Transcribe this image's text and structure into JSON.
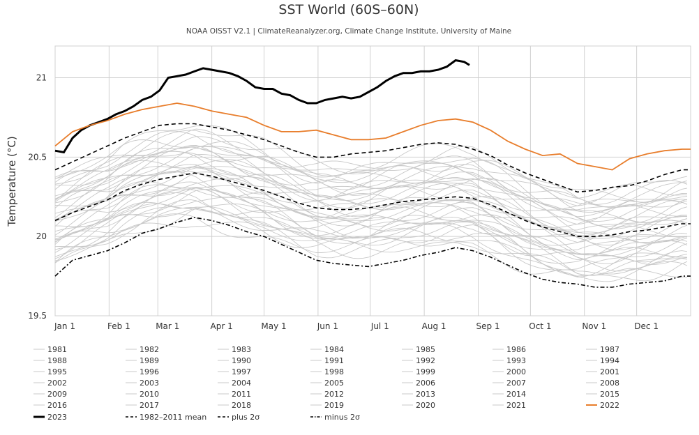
{
  "chart_data": {
    "type": "line",
    "title": "SST World (60S–60N)",
    "subtitle": "NOAA OISST V2.1 | ClimateReanalyzer.org, Climate Change Institute, University of Maine",
    "xlabel": "",
    "ylabel": "Temperature (°C)",
    "ylim": [
      19.5,
      21.2
    ],
    "yticks": [
      19.5,
      20,
      20.5,
      21
    ],
    "ytick_labels": [
      "19.5",
      "20",
      "20.5",
      "21"
    ],
    "xlim": [
      1,
      366
    ],
    "xticks": [
      {
        "label": "Jan 1",
        "day": 1
      },
      {
        "label": "Feb 1",
        "day": 32
      },
      {
        "label": "Mar 1",
        "day": 60
      },
      {
        "label": "Apr 1",
        "day": 91
      },
      {
        "label": "May 1",
        "day": 121
      },
      {
        "label": "Jun 1",
        "day": 152
      },
      {
        "label": "Jul 1",
        "day": 182
      },
      {
        "label": "Aug 1",
        "day": 213
      },
      {
        "label": "Sep 1",
        "day": 244
      },
      {
        "label": "Oct 1",
        "day": 274
      },
      {
        "label": "Nov 1",
        "day": 305
      },
      {
        "label": "Dec 1",
        "day": 335
      }
    ],
    "colors": {
      "year_2023": "#000000",
      "year_2022": "#e87d2b",
      "gray_years": "#c8c8c8",
      "reference": "#000000",
      "grid": "#d0d0d0"
    },
    "series": [
      {
        "name": "2023",
        "style": "bold",
        "x": [
          1,
          6,
          11,
          16,
          21,
          26,
          31,
          36,
          41,
          46,
          51,
          56,
          61,
          66,
          71,
          76,
          81,
          86,
          91,
          96,
          101,
          106,
          111,
          116,
          121,
          126,
          131,
          136,
          141,
          146,
          151,
          156,
          161,
          166,
          171,
          176,
          181,
          186,
          191,
          196,
          201,
          206,
          211,
          216,
          221,
          226,
          231,
          236,
          239
        ],
        "values": [
          20.54,
          20.53,
          20.62,
          20.67,
          20.7,
          20.72,
          20.74,
          20.77,
          20.79,
          20.82,
          20.86,
          20.88,
          20.92,
          21.0,
          21.01,
          21.02,
          21.04,
          21.06,
          21.05,
          21.04,
          21.03,
          21.01,
          20.98,
          20.94,
          20.93,
          20.93,
          20.9,
          20.89,
          20.86,
          20.84,
          20.84,
          20.86,
          20.87,
          20.88,
          20.87,
          20.88,
          20.91,
          20.94,
          20.98,
          21.01,
          21.03,
          21.03,
          21.04,
          21.04,
          21.05,
          21.07,
          21.11,
          21.1,
          21.08
        ]
      },
      {
        "name": "2022",
        "style": "orange",
        "x": [
          1,
          11,
          21,
          31,
          41,
          51,
          61,
          71,
          81,
          91,
          101,
          111,
          121,
          131,
          141,
          151,
          161,
          171,
          181,
          191,
          201,
          211,
          221,
          231,
          241,
          251,
          261,
          271,
          281,
          291,
          301,
          311,
          321,
          331,
          341,
          351,
          361,
          366
        ],
        "values": [
          20.57,
          20.66,
          20.7,
          20.73,
          20.77,
          20.8,
          20.82,
          20.84,
          20.82,
          20.79,
          20.77,
          20.75,
          20.7,
          20.66,
          20.66,
          20.67,
          20.64,
          20.61,
          20.61,
          20.62,
          20.66,
          20.7,
          20.73,
          20.74,
          20.72,
          20.67,
          20.6,
          20.55,
          20.51,
          20.52,
          20.46,
          20.44,
          20.42,
          20.49,
          20.52,
          20.54,
          20.55,
          20.55
        ]
      },
      {
        "name": "1982–2011 mean",
        "style": "dashed",
        "x": [
          1,
          11,
          21,
          31,
          41,
          51,
          61,
          71,
          81,
          91,
          101,
          111,
          121,
          131,
          141,
          151,
          161,
          171,
          181,
          191,
          201,
          211,
          221,
          231,
          241,
          251,
          261,
          271,
          281,
          291,
          301,
          311,
          321,
          331,
          341,
          351,
          361,
          366
        ],
        "values": [
          20.1,
          20.15,
          20.19,
          20.23,
          20.29,
          20.33,
          20.36,
          20.38,
          20.4,
          20.38,
          20.35,
          20.32,
          20.29,
          20.25,
          20.21,
          20.18,
          20.17,
          20.17,
          20.18,
          20.2,
          20.22,
          20.23,
          20.24,
          20.25,
          20.24,
          20.2,
          20.15,
          20.1,
          20.06,
          20.03,
          20.0,
          20.0,
          20.01,
          20.03,
          20.04,
          20.06,
          20.08,
          20.08
        ]
      },
      {
        "name": "plus 2σ",
        "style": "dashed",
        "x": [
          1,
          11,
          21,
          31,
          41,
          51,
          61,
          71,
          81,
          91,
          101,
          111,
          121,
          131,
          141,
          151,
          161,
          171,
          181,
          191,
          201,
          211,
          221,
          231,
          241,
          251,
          261,
          271,
          281,
          291,
          301,
          311,
          321,
          331,
          341,
          351,
          361,
          366
        ],
        "values": [
          20.42,
          20.47,
          20.52,
          20.57,
          20.62,
          20.66,
          20.7,
          20.71,
          20.71,
          20.69,
          20.67,
          20.64,
          20.61,
          20.57,
          20.53,
          20.5,
          20.5,
          20.52,
          20.53,
          20.54,
          20.56,
          20.58,
          20.59,
          20.58,
          20.55,
          20.51,
          20.45,
          20.4,
          20.36,
          20.32,
          20.28,
          20.29,
          20.31,
          20.32,
          20.35,
          20.39,
          20.42,
          20.42
        ]
      },
      {
        "name": "minus 2σ",
        "style": "dashdot",
        "x": [
          1,
          11,
          21,
          31,
          41,
          51,
          61,
          71,
          81,
          91,
          101,
          111,
          121,
          131,
          141,
          151,
          161,
          171,
          181,
          191,
          201,
          211,
          221,
          231,
          241,
          251,
          261,
          271,
          281,
          291,
          301,
          311,
          321,
          331,
          341,
          351,
          361,
          366
        ],
        "values": [
          19.75,
          19.85,
          19.88,
          19.91,
          19.96,
          20.02,
          20.05,
          20.09,
          20.12,
          20.1,
          20.07,
          20.03,
          20.0,
          19.95,
          19.9,
          19.85,
          19.83,
          19.82,
          19.81,
          19.83,
          19.85,
          19.88,
          19.9,
          19.93,
          19.91,
          19.87,
          19.82,
          19.77,
          19.73,
          19.71,
          19.7,
          19.68,
          19.68,
          19.7,
          19.71,
          19.72,
          19.75,
          19.75
        ]
      }
    ],
    "gray_band": {
      "description": "individual years 1981–2021 drawn as thin gray lines"
    },
    "legend": {
      "placement": "bottom",
      "entries": [
        {
          "label": "1981",
          "style": "gray"
        },
        {
          "label": "1982",
          "style": "gray"
        },
        {
          "label": "1983",
          "style": "gray"
        },
        {
          "label": "1984",
          "style": "gray"
        },
        {
          "label": "1985",
          "style": "gray"
        },
        {
          "label": "1986",
          "style": "gray"
        },
        {
          "label": "1987",
          "style": "gray"
        },
        {
          "label": "1988",
          "style": "gray"
        },
        {
          "label": "1989",
          "style": "gray"
        },
        {
          "label": "1990",
          "style": "gray"
        },
        {
          "label": "1991",
          "style": "gray"
        },
        {
          "label": "1992",
          "style": "gray"
        },
        {
          "label": "1993",
          "style": "gray"
        },
        {
          "label": "1994",
          "style": "gray"
        },
        {
          "label": "1995",
          "style": "gray"
        },
        {
          "label": "1996",
          "style": "gray"
        },
        {
          "label": "1997",
          "style": "gray"
        },
        {
          "label": "1998",
          "style": "gray"
        },
        {
          "label": "1999",
          "style": "gray"
        },
        {
          "label": "2000",
          "style": "gray"
        },
        {
          "label": "2001",
          "style": "gray"
        },
        {
          "label": "2002",
          "style": "gray"
        },
        {
          "label": "2003",
          "style": "gray"
        },
        {
          "label": "2004",
          "style": "gray"
        },
        {
          "label": "2005",
          "style": "gray"
        },
        {
          "label": "2006",
          "style": "gray"
        },
        {
          "label": "2007",
          "style": "gray"
        },
        {
          "label": "2008",
          "style": "gray"
        },
        {
          "label": "2009",
          "style": "gray"
        },
        {
          "label": "2010",
          "style": "gray"
        },
        {
          "label": "2011",
          "style": "gray"
        },
        {
          "label": "2012",
          "style": "gray"
        },
        {
          "label": "2013",
          "style": "gray"
        },
        {
          "label": "2014",
          "style": "gray"
        },
        {
          "label": "2015",
          "style": "gray"
        },
        {
          "label": "2016",
          "style": "gray"
        },
        {
          "label": "2017",
          "style": "gray"
        },
        {
          "label": "2018",
          "style": "gray"
        },
        {
          "label": "2019",
          "style": "gray"
        },
        {
          "label": "2020",
          "style": "gray"
        },
        {
          "label": "2021",
          "style": "gray"
        },
        {
          "label": "2022",
          "style": "orange"
        },
        {
          "label": "2023",
          "style": "bold"
        },
        {
          "label": "1982–2011 mean",
          "style": "dashed"
        },
        {
          "label": "plus 2σ",
          "style": "dashed"
        },
        {
          "label": "minus 2σ",
          "style": "dashdot"
        }
      ]
    }
  }
}
